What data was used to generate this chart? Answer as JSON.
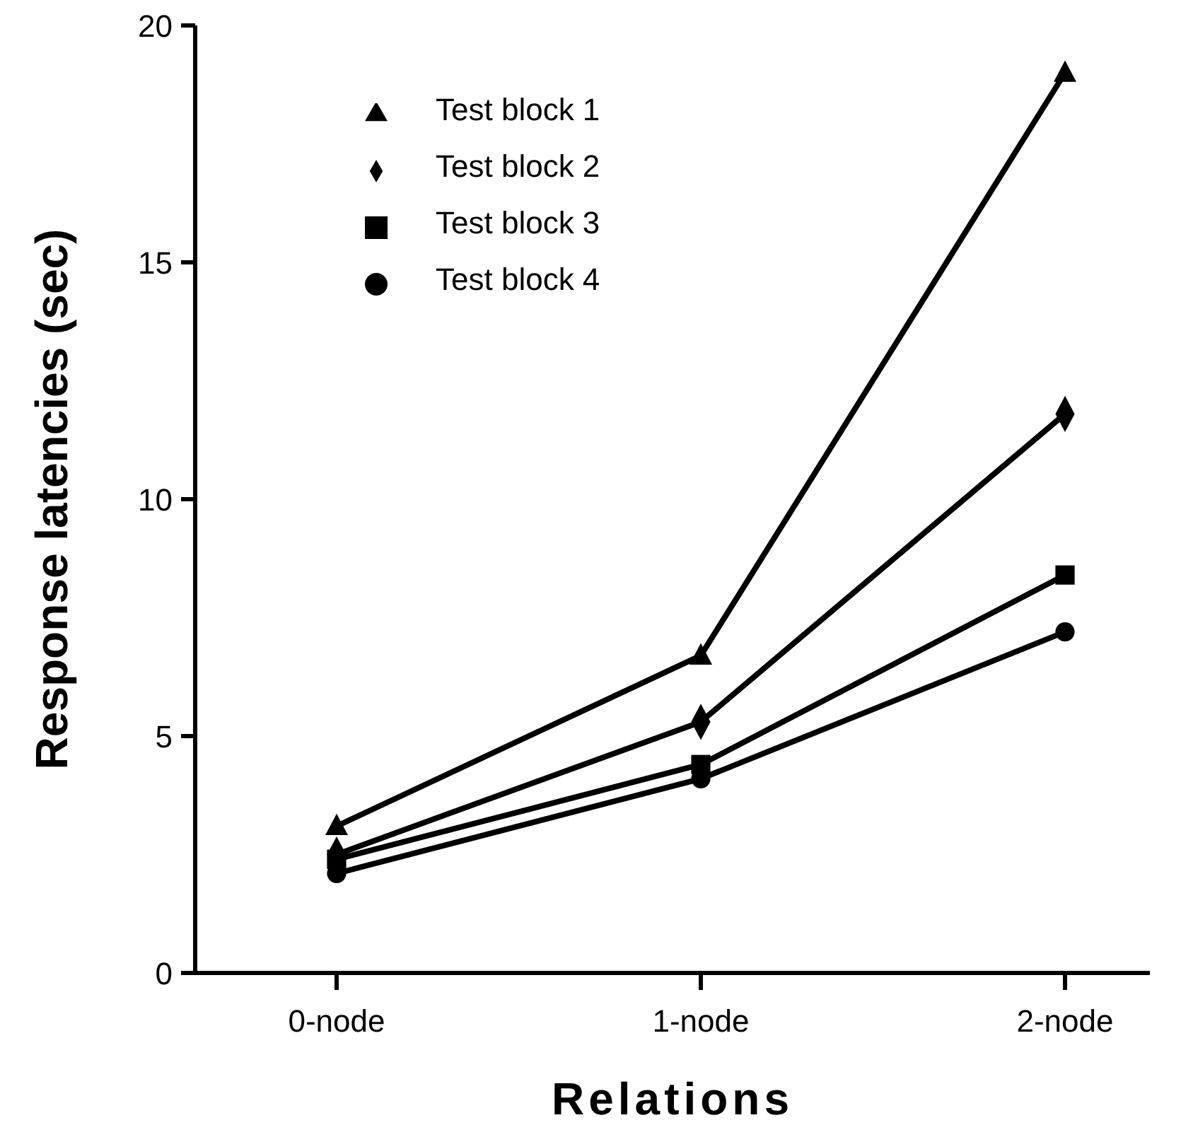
{
  "chart_data": {
    "type": "line",
    "xlabel": "Relations",
    "ylabel": "Response  latencies  (sec)",
    "categories": [
      "0-node",
      "1-node",
      "2-node"
    ],
    "series": [
      {
        "name": "Test block 1",
        "color": "#000000",
        "marker": "triangle",
        "values": [
          3.1,
          6.7,
          19.0
        ]
      },
      {
        "name": "Test block 2",
        "color": "#000000",
        "marker": "diamond",
        "values": [
          2.5,
          5.3,
          11.8
        ]
      },
      {
        "name": "Test block 3",
        "color": "#000000",
        "marker": "square",
        "values": [
          2.4,
          4.4,
          8.4
        ]
      },
      {
        "name": "Test block 4",
        "color": "#000000",
        "marker": "circle",
        "values": [
          2.1,
          4.1,
          7.2
        ]
      }
    ],
    "ylim": [
      0,
      20
    ],
    "yticks": [
      0,
      5,
      10,
      15,
      20
    ],
    "grid": false,
    "legend": "top left",
    "line_style": "solid"
  }
}
